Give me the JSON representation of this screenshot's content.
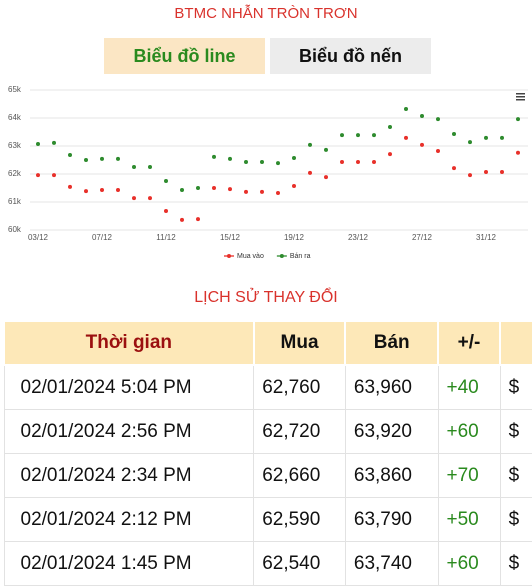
{
  "header": {
    "title": "BTMC NHẪN TRÒN TRƠN"
  },
  "tabs": [
    "Biểu đồ line",
    "Biểu đồ nến"
  ],
  "chart_data": {
    "type": "line",
    "categories": [
      "03/12",
      null,
      null,
      null,
      "07/12",
      null,
      null,
      null,
      "11/12",
      null,
      null,
      null,
      "15/12",
      null,
      null,
      null,
      "19/12",
      null,
      null,
      null,
      "23/12",
      null,
      null,
      null,
      "27/12",
      null,
      null,
      null,
      "31/12",
      null,
      null
    ],
    "series": [
      {
        "name": "Mua vào",
        "color": "#e8302a",
        "values": [
          61960,
          61960,
          61540,
          61390,
          61430,
          61430,
          61140,
          61140,
          60680,
          60360,
          60390,
          61500,
          61460,
          61360,
          61360,
          61320,
          61570,
          62040,
          61890,
          62430,
          62430,
          62430,
          62710,
          63290,
          63040,
          62820,
          62210,
          61960,
          62070,
          62070,
          62760
        ]
      },
      {
        "name": "Bán ra",
        "color": "#2e8b2e",
        "values": [
          63070,
          63110,
          62680,
          62500,
          62540,
          62540,
          62250,
          62250,
          61750,
          61430,
          61500,
          62610,
          62540,
          62430,
          62430,
          62390,
          62570,
          63040,
          62860,
          63390,
          63390,
          63390,
          63680,
          64320,
          64070,
          63960,
          63430,
          63140,
          63290,
          63290,
          63960
        ]
      }
    ],
    "ylim": [
      60000,
      65000
    ],
    "yticks": [
      {
        "value": 60000,
        "label": "60k"
      },
      {
        "value": 61000,
        "label": "61k"
      },
      {
        "value": 62000,
        "label": "62k"
      },
      {
        "value": 63000,
        "label": "63k"
      },
      {
        "value": 64000,
        "label": "64k"
      },
      {
        "value": 65000,
        "label": "65k"
      }
    ],
    "grid": true,
    "legend": "bottom"
  },
  "history": {
    "title": "LỊCH SỬ THAY ĐỔI",
    "columns": [
      "Thời gian",
      "Mua",
      "Bán",
      "+/-"
    ],
    "rows": [
      [
        "02/01/2024 5:04 PM",
        "62,760",
        "63,960",
        "+40",
        "$"
      ],
      [
        "02/01/2024 2:56 PM",
        "62,720",
        "63,920",
        "+60",
        "$"
      ],
      [
        "02/01/2024 2:34 PM",
        "62,660",
        "63,860",
        "+70",
        "$"
      ],
      [
        "02/01/2024 2:12 PM",
        "62,590",
        "63,790",
        "+50",
        "$"
      ],
      [
        "02/01/2024 1:45 PM",
        "62,540",
        "63,740",
        "+60",
        "$"
      ]
    ]
  }
}
